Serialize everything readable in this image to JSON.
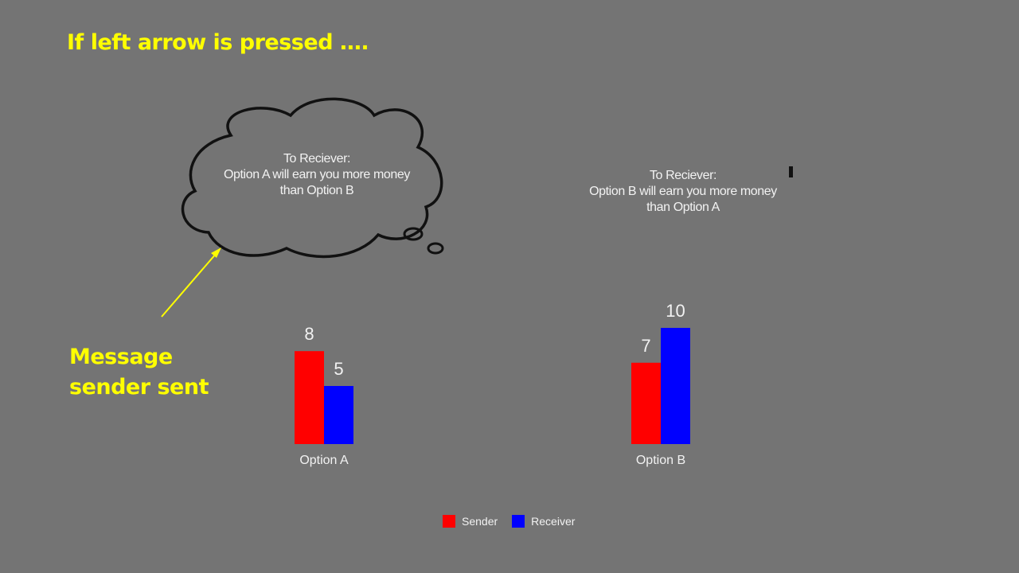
{
  "title": "If left arrow is pressed ….",
  "callout": {
    "line1": "Message",
    "line2": "sender sent"
  },
  "messages": {
    "left": {
      "header": "To Reciever:",
      "line1": "Option A will earn you more money",
      "line2": "than Option B"
    },
    "right": {
      "header": "To Reciever:",
      "line1": "Option B will earn you more money",
      "line2": "than Option A"
    }
  },
  "colors": {
    "background": "#747474",
    "accent": "#ffff00",
    "sender": "#ff0000",
    "receiver": "#0000ff",
    "text": "#f2f2f2"
  },
  "chart_data": {
    "type": "bar",
    "categories": [
      "Option A",
      "Option B"
    ],
    "series": [
      {
        "name": "Sender",
        "values": [
          8,
          7
        ]
      },
      {
        "name": "Receiver",
        "values": [
          5,
          10
        ]
      }
    ],
    "ylim": [
      0,
      10
    ],
    "legend": "bottom-center",
    "data_labels": true,
    "grid": false
  }
}
